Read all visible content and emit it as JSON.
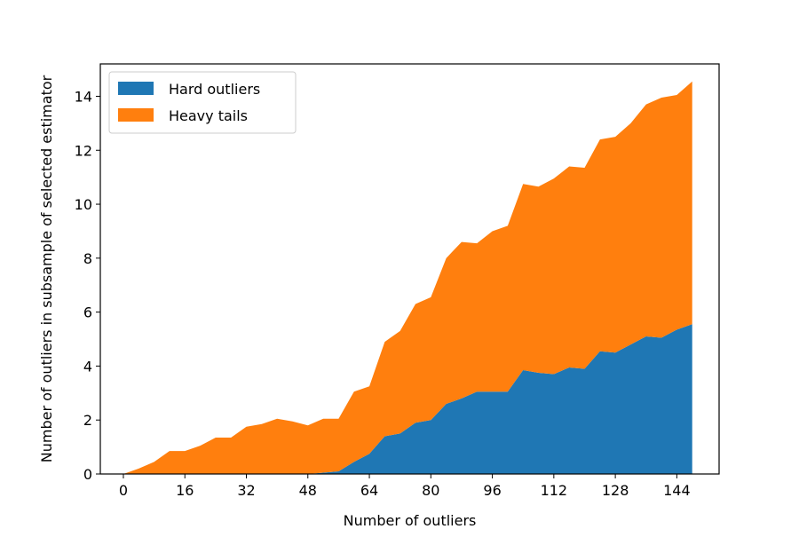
{
  "chart_data": {
    "type": "area",
    "stacked": true,
    "xlabel": "Number of outliers",
    "ylabel": "Number of outliers in subsample of selected estimator",
    "xlim": [
      -6,
      155
    ],
    "ylim": [
      0,
      15.2
    ],
    "xticks": [
      0,
      16,
      32,
      48,
      64,
      80,
      96,
      112,
      128,
      144
    ],
    "yticks": [
      0,
      2,
      4,
      6,
      8,
      10,
      12,
      14
    ],
    "grid": false,
    "legend_position": "upper-left",
    "x": [
      0,
      4,
      8,
      12,
      16,
      20,
      24,
      28,
      32,
      36,
      40,
      44,
      48,
      52,
      56,
      60,
      64,
      68,
      72,
      76,
      80,
      84,
      88,
      92,
      96,
      100,
      104,
      108,
      112,
      116,
      120,
      124,
      128,
      132,
      136,
      140,
      144,
      148
    ],
    "series": [
      {
        "name": "Hard outliers",
        "color": "#1f77b4",
        "values": [
          0,
          0,
          0,
          0,
          0,
          0,
          0,
          0,
          0,
          0,
          0,
          0,
          0,
          0.05,
          0.1,
          0.45,
          0.75,
          1.4,
          1.5,
          1.9,
          2.0,
          2.6,
          2.8,
          3.05,
          3.05,
          3.05,
          3.85,
          3.75,
          3.7,
          3.95,
          3.9,
          4.55,
          4.5,
          4.8,
          5.1,
          5.05,
          5.35,
          5.55
        ]
      },
      {
        "name": "Heavy tails",
        "color": "#ff7f0e",
        "values": [
          0,
          0.2,
          0.45,
          0.85,
          0.85,
          1.05,
          1.35,
          1.35,
          1.75,
          1.85,
          2.05,
          1.95,
          1.8,
          2.0,
          1.95,
          2.6,
          2.5,
          3.5,
          3.8,
          4.4,
          4.55,
          5.4,
          5.8,
          5.5,
          5.95,
          6.15,
          6.9,
          6.9,
          7.25,
          7.45,
          7.45,
          7.85,
          8.0,
          8.2,
          8.6,
          8.9,
          8.7,
          9.0
        ]
      }
    ]
  }
}
